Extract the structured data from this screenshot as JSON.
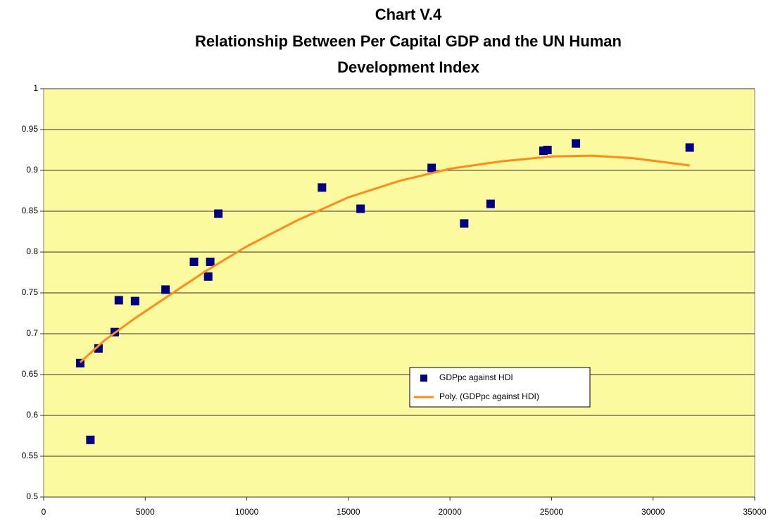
{
  "chart_data": {
    "type": "scatter",
    "title": [
      "Chart V.4",
      "Relationship Between Per Capital GDP and the UN Human",
      "Development Index"
    ],
    "xlim": [
      0,
      35000
    ],
    "xticks": [
      0,
      5000,
      10000,
      15000,
      20000,
      25000,
      30000,
      35000
    ],
    "ylim": [
      0.5,
      1
    ],
    "yticks": [
      0.5,
      0.55,
      0.6,
      0.65,
      0.7,
      0.75,
      0.8,
      0.85,
      0.9,
      0.95,
      1
    ],
    "grid": true,
    "plot_background": "#fbfa9e",
    "series": [
      {
        "name": "GDPpc against HDI",
        "type": "scatter",
        "color": "#000080",
        "x": [
          1800,
          2300,
          2700,
          3500,
          3700,
          4500,
          6000,
          7400,
          8100,
          8200,
          8600,
          13700,
          15600,
          19100,
          20700,
          22000,
          24600,
          24800,
          26200,
          31800
        ],
        "values": [
          0.664,
          0.57,
          0.682,
          0.702,
          0.741,
          0.74,
          0.754,
          0.788,
          0.77,
          0.788,
          0.847,
          0.879,
          0.853,
          0.903,
          0.835,
          0.859,
          0.924,
          0.925,
          0.933,
          0.928
        ]
      },
      {
        "name": "Poly. (GDPpc against HDI)",
        "type": "line",
        "color": "#ff8c1a",
        "x": [
          1800,
          3000,
          4500,
          6000,
          8000,
          10000,
          12500,
          15000,
          17500,
          20000,
          22500,
          25000,
          27000,
          29000,
          31800
        ],
        "values": [
          0.665,
          0.692,
          0.719,
          0.744,
          0.777,
          0.807,
          0.839,
          0.867,
          0.887,
          0.902,
          0.911,
          0.917,
          0.918,
          0.915,
          0.906
        ]
      }
    ],
    "legend": "lower-right"
  }
}
